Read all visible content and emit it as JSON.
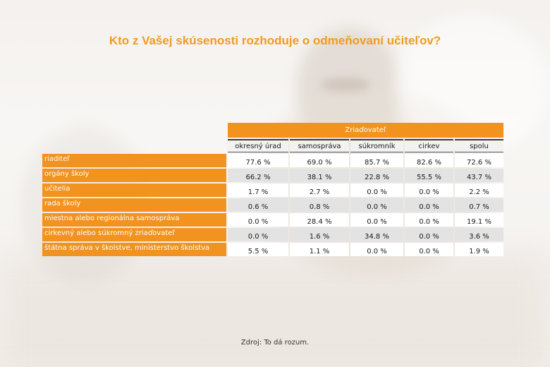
{
  "title": "Kto z Vašej skúsenosti rozhoduje o odmeňovaní učiteľov?",
  "table": {
    "group_header": "Zriaďovateľ",
    "columns": [
      "okresný úrad",
      "samospráva",
      "súkromník",
      "cirkev",
      "spolu"
    ],
    "rows": [
      {
        "label": "riaditeľ",
        "values": [
          "77.6 %",
          "69.0 %",
          "85.7 %",
          "82.6 %",
          "72.6 %"
        ]
      },
      {
        "label": "orgány školy",
        "values": [
          "66.2 %",
          "38.1 %",
          "22.8 %",
          "55.5 %",
          "43.7 %"
        ]
      },
      {
        "label": "učitelia",
        "values": [
          "1.7 %",
          "2.7 %",
          "0.0 %",
          "0.0 %",
          "2.2 %"
        ]
      },
      {
        "label": "rada školy",
        "values": [
          "0.6 %",
          "0.8 %",
          "0.0 %",
          "0.0 %",
          "0.7 %"
        ]
      },
      {
        "label": "miestna alebo regionálna samospráva",
        "values": [
          "0.0 %",
          "28.4 %",
          "0.0 %",
          "0.0 %",
          "19.1 %"
        ]
      },
      {
        "label": "cirkevný alebo súkromný zriaďovateľ",
        "values": [
          "0.0 %",
          "1.6 %",
          "34.8 %",
          "0.0 %",
          "3.6 %"
        ]
      },
      {
        "label": "štátna správa v školstve, ministerstvo školstva",
        "values": [
          "5.5 %",
          "1.1 %",
          "0.0 %",
          "0.0 %",
          "1.9 %"
        ]
      }
    ]
  },
  "source": "Zdroj: To dá rozum.",
  "colors": {
    "accent": "#f2921f",
    "title": "#f29a21",
    "row_alt": "#e3e3e3"
  }
}
